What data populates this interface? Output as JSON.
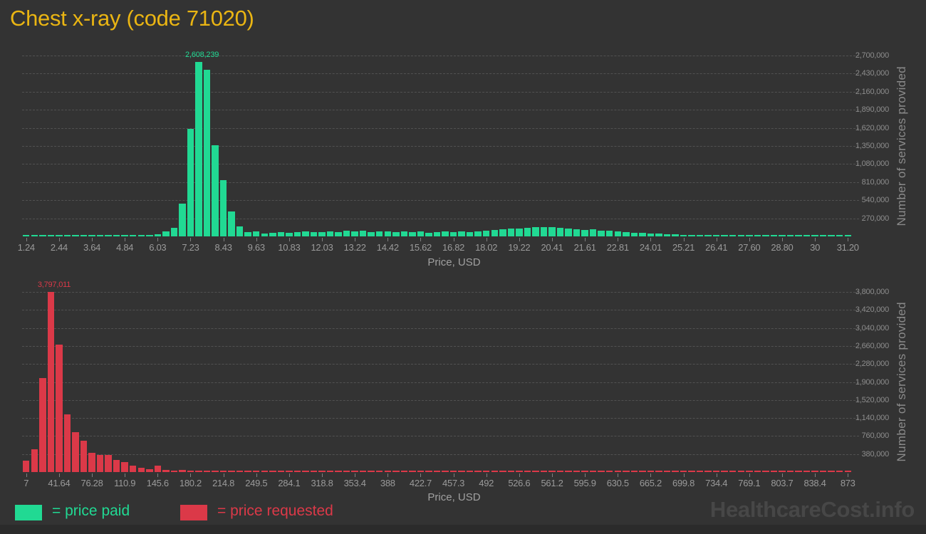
{
  "title": "Chest x-ray (code 71020)",
  "colors": {
    "background": "#333333",
    "title": "#eab513",
    "paid": "#21d993",
    "requested": "#db3948",
    "axis_text": "#9a9a9a",
    "gridline": "#575757",
    "watermark": "#474747"
  },
  "legend": {
    "paid_label": "= price paid",
    "requested_label": "= price requested"
  },
  "watermark": "HealthcareCost.info",
  "chart_data": [
    {
      "name": "price-paid-histogram",
      "type": "bar",
      "series_label": "price paid",
      "color": "#21d993",
      "xlabel": "Price, USD",
      "ylabel": "Number of services provided",
      "x_min": 1.24,
      "x_max": 31.2,
      "y_max": 2700000,
      "y_step": 270000,
      "grid": true,
      "legend_position": "bottom",
      "x_tick_labels": [
        "1.24",
        "2.44",
        "3.64",
        "4.84",
        "6.03",
        "7.23",
        "8.43",
        "9.63",
        "10.83",
        "12.03",
        "13.22",
        "14.42",
        "15.62",
        "16.82",
        "18.02",
        "19.22",
        "20.41",
        "21.61",
        "22.81",
        "24.01",
        "25.21",
        "26.41",
        "27.60",
        "28.80",
        "30",
        "31.20"
      ],
      "y_tick_labels": [
        "2,700,000",
        "2,430,000",
        "2,160,000",
        "1,890,000",
        "1,620,000",
        "1,350,000",
        "1,080,000",
        "810,000",
        "540,000",
        "270,000"
      ],
      "bin_count": 101,
      "peak": {
        "index": 21,
        "label": "2,608,239",
        "value": 2608239
      },
      "values": [
        8000,
        8000,
        8000,
        8000,
        8000,
        8000,
        8000,
        8000,
        8000,
        8000,
        8000,
        8000,
        8000,
        8000,
        10000,
        12000,
        30000,
        76000,
        131000,
        490000,
        1610000,
        2608239,
        2490000,
        1360000,
        840000,
        372000,
        146000,
        60000,
        73000,
        45000,
        55000,
        65000,
        58000,
        62000,
        70000,
        60000,
        68000,
        74000,
        64000,
        80000,
        70000,
        86000,
        66000,
        78000,
        72000,
        68000,
        76000,
        62000,
        70000,
        58000,
        66000,
        74000,
        62000,
        70000,
        64000,
        72000,
        88000,
        96000,
        104000,
        112000,
        120000,
        128000,
        134000,
        140000,
        136000,
        128000,
        118000,
        108000,
        98000,
        102000,
        90000,
        80000,
        72000,
        64000,
        56000,
        50000,
        44000,
        38000,
        32000,
        28000,
        24000,
        20000,
        17000,
        14000,
        12000,
        10000,
        8000,
        8000,
        8000,
        8000,
        8000,
        8000,
        8000,
        8000,
        8000,
        8000,
        8000,
        8000,
        8000,
        8000,
        8000
      ]
    },
    {
      "name": "price-requested-histogram",
      "type": "bar",
      "series_label": "price requested",
      "color": "#db3948",
      "xlabel": "Price, USD",
      "ylabel": "Number of services provided",
      "x_min": 7,
      "x_max": 873,
      "y_max": 3800000,
      "y_step": 380000,
      "grid": true,
      "legend_position": "bottom",
      "x_tick_labels": [
        "7",
        "41.64",
        "76.28",
        "110.9",
        "145.6",
        "180.2",
        "214.8",
        "249.5",
        "284.1",
        "318.8",
        "353.4",
        "388",
        "422.7",
        "457.3",
        "492",
        "526.6",
        "561.2",
        "595.9",
        "630.5",
        "665.2",
        "699.8",
        "734.4",
        "769.1",
        "803.7",
        "838.4",
        "873"
      ],
      "y_tick_labels": [
        "3,800,000",
        "3,420,000",
        "3,040,000",
        "2,660,000",
        "2,280,000",
        "1,900,000",
        "1,520,000",
        "1,140,000",
        "760,000",
        "380,000"
      ],
      "bin_count": 101,
      "peak": {
        "index": 3,
        "label": "3,797,011",
        "value": 3797011
      },
      "values": [
        233000,
        486000,
        1990000,
        3797011,
        2690000,
        1210000,
        841000,
        659000,
        410000,
        355000,
        355000,
        253000,
        203000,
        142000,
        91000,
        66000,
        142000,
        40000,
        30000,
        45000,
        25000,
        30000,
        20000,
        25000,
        18000,
        15000,
        12000,
        15000,
        12000,
        10000,
        8000,
        8000,
        8000,
        8000,
        8000,
        8000,
        8000,
        8000,
        8000,
        8000,
        8000,
        8000,
        8000,
        8000,
        8000,
        8000,
        8000,
        8000,
        8000,
        8000,
        8000,
        8000,
        8000,
        8000,
        8000,
        8000,
        8000,
        8000,
        8000,
        8000,
        8000,
        8000,
        8000,
        8000,
        8000,
        8000,
        8000,
        8000,
        8000,
        8000,
        8000,
        8000,
        8000,
        8000,
        8000,
        8000,
        8000,
        8000,
        8000,
        8000,
        8000,
        8000,
        8000,
        8000,
        8000,
        8000,
        8000,
        8000,
        8000,
        8000,
        8000,
        8000,
        8000,
        8000,
        8000,
        8000,
        8000,
        8000,
        8000,
        8000,
        8000
      ]
    }
  ]
}
